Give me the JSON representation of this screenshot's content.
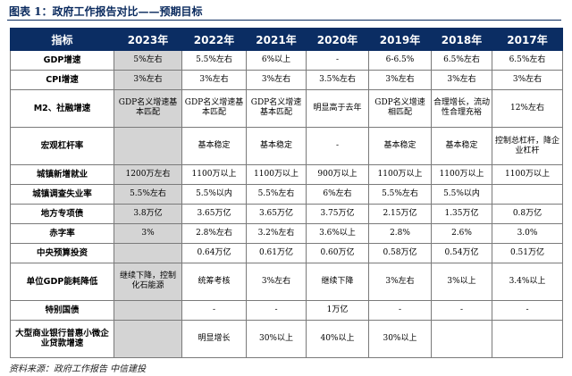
{
  "title": "图表 1：政府工作报告对比——预期目标",
  "headers": [
    "指标",
    "2023年",
    "2022年",
    "2021年",
    "2020年",
    "2019年",
    "2018年",
    "2017年"
  ],
  "rows": [
    [
      "GDP增速",
      "5%左右",
      "5.5%左右",
      "6%以上",
      "-",
      "6-6.5%",
      "6.5%左右",
      "6.5%左右"
    ],
    [
      "CPI增速",
      "3%左右",
      "3%左右",
      "3%左右",
      "3.5%左右",
      "3%左右",
      "3%左右",
      "3%左右"
    ],
    [
      "M2、社融增速",
      "GDP名义增速基本匹配",
      "GDP名义增速基本匹配",
      "GDP名义增速基本匹配",
      "明显高于去年",
      "GDP名义增速相匹配",
      "合理增长，流动性合理充裕",
      "12%左右"
    ],
    [
      "宏观杠杆率",
      "",
      "基本稳定",
      "基本稳定",
      "-",
      "基本稳定",
      "基本稳定",
      "控制总杠杆，降企业杠杆"
    ],
    [
      "城镇新增就业",
      "1200万左右",
      "1100万以上",
      "1100万以上",
      "900万以上",
      "1100万以上",
      "1100万以上",
      "1100万以上"
    ],
    [
      "城镇调查失业率",
      "5.5%左右",
      "5.5%以内",
      "5.5%左右",
      "6%左右",
      "5.5%左右",
      "5.5%以内",
      ""
    ],
    [
      "地方专项债",
      "3.8万亿",
      "3.65万亿",
      "3.65万亿",
      "3.75万亿",
      "2.15万亿",
      "1.35万亿",
      "0.8万亿"
    ],
    [
      "赤字率",
      "3%",
      "2.8%左右",
      "3.2%左右",
      "3.6%以上",
      "2.8%",
      "2.6%",
      "3.0%"
    ],
    [
      "中央预算投资",
      "",
      "0.64万亿",
      "0.61万亿",
      "0.60万亿",
      "0.58万亿",
      "0.54万亿",
      "0.51万亿"
    ],
    [
      "单位GDP能耗降低",
      "继续下降，控制化石能源",
      "统筹考核",
      "3%左右",
      "继续下降",
      "3%左右",
      "3%以上",
      "3.4%以上"
    ],
    [
      "特别国债",
      "",
      "-",
      "-",
      "1万亿",
      "-",
      "-",
      "-"
    ],
    [
      "大型商业银行普惠小微企业贷款增速",
      "",
      "明显增长",
      "30%以上",
      "40%以上",
      "30%以上",
      "",
      ""
    ]
  ],
  "source": "资料来源：政府工作报告  中信建投"
}
